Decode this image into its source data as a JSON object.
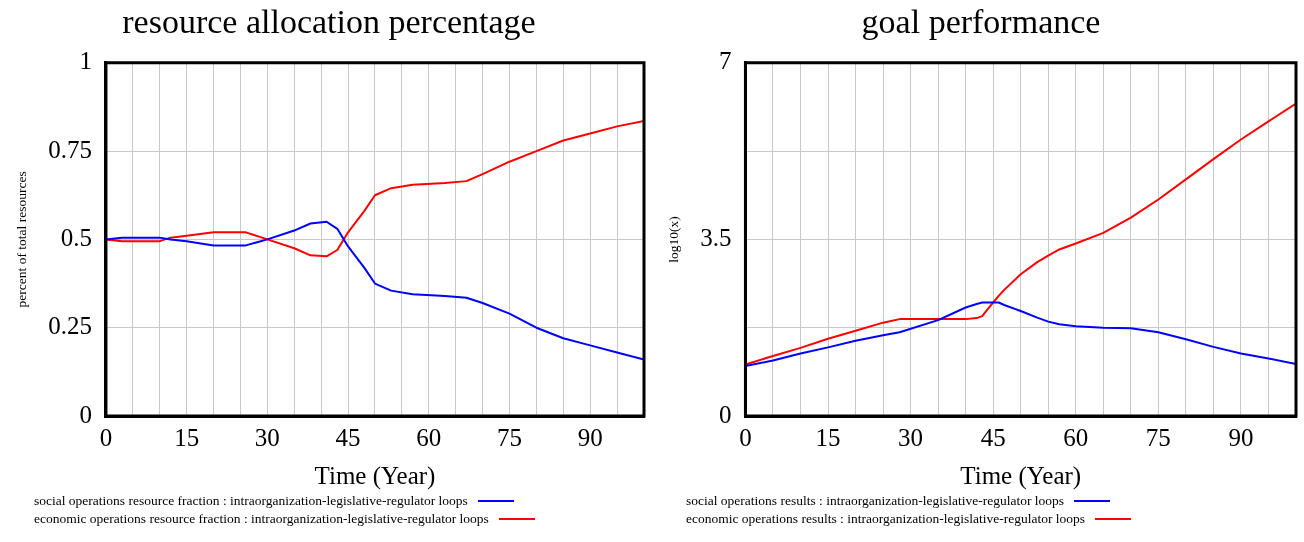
{
  "chart_data": [
    {
      "type": "line",
      "title": "resource allocation percentage",
      "xlabel": "Time (Year)",
      "ylabel": "percent of total resources",
      "x": [
        0,
        3,
        10,
        12,
        15,
        20,
        26,
        30,
        35,
        38,
        41,
        43,
        45,
        48,
        50,
        53,
        57,
        63,
        67,
        70,
        75,
        80,
        85,
        90,
        95,
        100
      ],
      "series": [
        {
          "name": "social operations resource fraction : intraorganization-legislative-regulator loops",
          "color": "#0000ff",
          "values": [
            0.5,
            0.505,
            0.505,
            0.5,
            0.495,
            0.483,
            0.483,
            0.5,
            0.525,
            0.545,
            0.55,
            0.53,
            0.48,
            0.42,
            0.375,
            0.355,
            0.345,
            0.34,
            0.335,
            0.32,
            0.29,
            0.25,
            0.22,
            0.2,
            0.18,
            0.16
          ]
        },
        {
          "name": "economic operations resource fraction : intraorganization-legislative-regulator loops",
          "color": "#ff0000",
          "values": [
            0.5,
            0.495,
            0.495,
            0.505,
            0.51,
            0.52,
            0.52,
            0.5,
            0.475,
            0.455,
            0.452,
            0.47,
            0.52,
            0.58,
            0.625,
            0.645,
            0.655,
            0.66,
            0.665,
            0.685,
            0.72,
            0.75,
            0.78,
            0.8,
            0.82,
            0.835
          ]
        }
      ],
      "xlim": [
        0,
        100
      ],
      "xticks": [
        0,
        {
          "value": 5,
          "label": null
        },
        {
          "value": 10,
          "label": null
        },
        15,
        {
          "value": 20,
          "label": null
        },
        {
          "value": 25,
          "label": null
        },
        30,
        {
          "value": 35,
          "label": null
        },
        {
          "value": 40,
          "label": null
        },
        45,
        {
          "value": 50,
          "label": null
        },
        {
          "value": 55,
          "label": null
        },
        60,
        {
          "value": 65,
          "label": null
        },
        {
          "value": 70,
          "label": null
        },
        75,
        {
          "value": 80,
          "label": null
        },
        {
          "value": 85,
          "label": null
        },
        90,
        {
          "value": 95,
          "label": null
        },
        {
          "value": 100,
          "label": null
        }
      ],
      "ylim": [
        0,
        1
      ],
      "yticks": [
        0,
        0.25,
        0.5,
        0.75,
        1
      ],
      "grid": true,
      "legend": "bottom",
      "marker": "none",
      "line_style": "solid"
    },
    {
      "type": "line",
      "title": "goal performance",
      "xlabel": "Time (Year)",
      "ylabel": "log10(x)",
      "x": [
        0,
        5,
        10,
        15,
        20,
        25,
        28,
        35,
        40,
        42,
        43,
        45,
        46,
        47,
        50,
        53,
        55,
        57,
        60,
        65,
        70,
        75,
        80,
        85,
        90,
        95,
        100
      ],
      "series": [
        {
          "name": "social operations results : intraorganization-legislative-regulator loops",
          "color": "#0000ff",
          "values": [
            0.99,
            1.1,
            1.24,
            1.36,
            1.49,
            1.6,
            1.66,
            1.9,
            2.15,
            2.22,
            2.25,
            2.25,
            2.25,
            2.2,
            2.08,
            1.95,
            1.87,
            1.82,
            1.78,
            1.75,
            1.74,
            1.66,
            1.52,
            1.37,
            1.24,
            1.14,
            1.03
          ]
        },
        {
          "name": "economic operations results : intraorganization-legislative-regulator loops",
          "color": "#ff0000",
          "values": [
            1.02,
            1.19,
            1.35,
            1.53,
            1.69,
            1.85,
            1.92,
            1.92,
            1.92,
            1.94,
            1.98,
            2.25,
            2.38,
            2.5,
            2.81,
            3.05,
            3.18,
            3.3,
            3.42,
            3.63,
            3.93,
            4.29,
            4.69,
            5.09,
            5.48,
            5.84,
            6.19
          ]
        }
      ],
      "xlim": [
        0,
        100
      ],
      "xticks": [
        0,
        {
          "value": 5,
          "label": null
        },
        {
          "value": 10,
          "label": null
        },
        15,
        {
          "value": 20,
          "label": null
        },
        {
          "value": 25,
          "label": null
        },
        30,
        {
          "value": 35,
          "label": null
        },
        {
          "value": 40,
          "label": null
        },
        45,
        {
          "value": 50,
          "label": null
        },
        {
          "value": 55,
          "label": null
        },
        60,
        {
          "value": 65,
          "label": null
        },
        {
          "value": 70,
          "label": null
        },
        75,
        {
          "value": 80,
          "label": null
        },
        {
          "value": 85,
          "label": null
        },
        90,
        {
          "value": 95,
          "label": null
        },
        {
          "value": 100,
          "label": null
        }
      ],
      "ylim": [
        0,
        7
      ],
      "yticks": [
        0,
        {
          "value": 1.75,
          "label": null
        },
        3.5,
        {
          "value": 5.25,
          "label": null
        },
        7
      ],
      "grid": true,
      "legend": "bottom",
      "marker": "none",
      "line_style": "solid"
    }
  ]
}
